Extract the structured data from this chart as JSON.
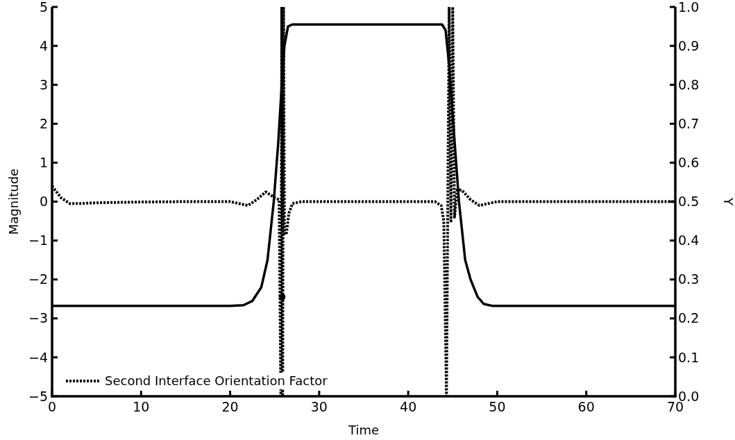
{
  "chart_data": {
    "type": "line",
    "xlabel": "Time",
    "ylabel": "Magnitude",
    "y2label": "Y",
    "xlim": [
      0,
      70
    ],
    "xticks": [
      0,
      10,
      20,
      30,
      40,
      50,
      60,
      70
    ],
    "ylim": [
      -5,
      5
    ],
    "yticks": [
      {
        "value": -5,
        "label": "−5"
      },
      {
        "value": -4,
        "label": "−4"
      },
      {
        "value": -3,
        "label": "−3"
      },
      {
        "value": -2,
        "label": "−2"
      },
      {
        "value": -1,
        "label": "−1"
      },
      0,
      1,
      2,
      3,
      4,
      5
    ],
    "y2lim": [
      0,
      1
    ],
    "y2ticks": [
      {
        "value": 0,
        "label": "0.0"
      },
      {
        "value": 0.1,
        "label": "0.1"
      },
      {
        "value": 0.2,
        "label": "0.2"
      },
      {
        "value": 0.3,
        "label": "0.3"
      },
      {
        "value": 0.4,
        "label": "0.4"
      },
      {
        "value": 0.5,
        "label": "0.5"
      },
      {
        "value": 0.6,
        "label": "0.6"
      },
      {
        "value": 0.7,
        "label": "0.7"
      },
      {
        "value": 0.8,
        "label": "0.8"
      },
      {
        "value": 0.9,
        "label": "0.9"
      },
      {
        "value": 1,
        "label": "1.0"
      }
    ],
    "grid": false,
    "legend": "bottom left",
    "marker": "none",
    "series": [
      {
        "name": "Second Interface Orientation Factor",
        "color": "#000000",
        "line_style": "dotted",
        "x": [
          0,
          0.5,
          1,
          2,
          3,
          5,
          10,
          15,
          20,
          21,
          22,
          23,
          24,
          25,
          25.5,
          25.7,
          25.8,
          25.9,
          26,
          26.1,
          26.3,
          26.6,
          27,
          28,
          43,
          43.7,
          44,
          44.3,
          44.6,
          44.8,
          45,
          45.2,
          45.5,
          46,
          47,
          48,
          49,
          50,
          70
        ],
        "values": [
          0.4,
          0.25,
          0.1,
          -0.05,
          -0.05,
          -0.03,
          -0.01,
          0,
          0,
          -0.05,
          -0.1,
          0.05,
          0.25,
          0.1,
          0.05,
          -5,
          5,
          -5,
          5,
          -0.8,
          -0.85,
          -0.3,
          -0.05,
          0,
          0,
          -0.1,
          -0.5,
          -5,
          5,
          -0.5,
          5,
          -0.4,
          0.3,
          0.3,
          0.05,
          -0.1,
          -0.05,
          0,
          0
        ]
      },
      {
        "color": "#000000",
        "axis": "y2",
        "line_style": "solid",
        "x": [
          0,
          20,
          21.5,
          22.5,
          23.5,
          24.2,
          24.9,
          25.4,
          25.8,
          26.1,
          26.5,
          27,
          43.8,
          44.2,
          44.6,
          45,
          45.7,
          46.4,
          47,
          47.8,
          48.5,
          49.5,
          70
        ],
        "values": [
          0.232,
          0.232,
          0.234,
          0.245,
          0.28,
          0.35,
          0.5,
          0.65,
          0.8,
          0.9,
          0.95,
          0.955,
          0.955,
          0.94,
          0.85,
          0.72,
          0.5,
          0.35,
          0.3,
          0.255,
          0.237,
          0.232,
          0.232
        ]
      },
      {
        "type": "scatter",
        "color": "#000000",
        "marker": "circle",
        "x": [
          25.85
        ],
        "values": [
          -2.45
        ]
      }
    ]
  }
}
